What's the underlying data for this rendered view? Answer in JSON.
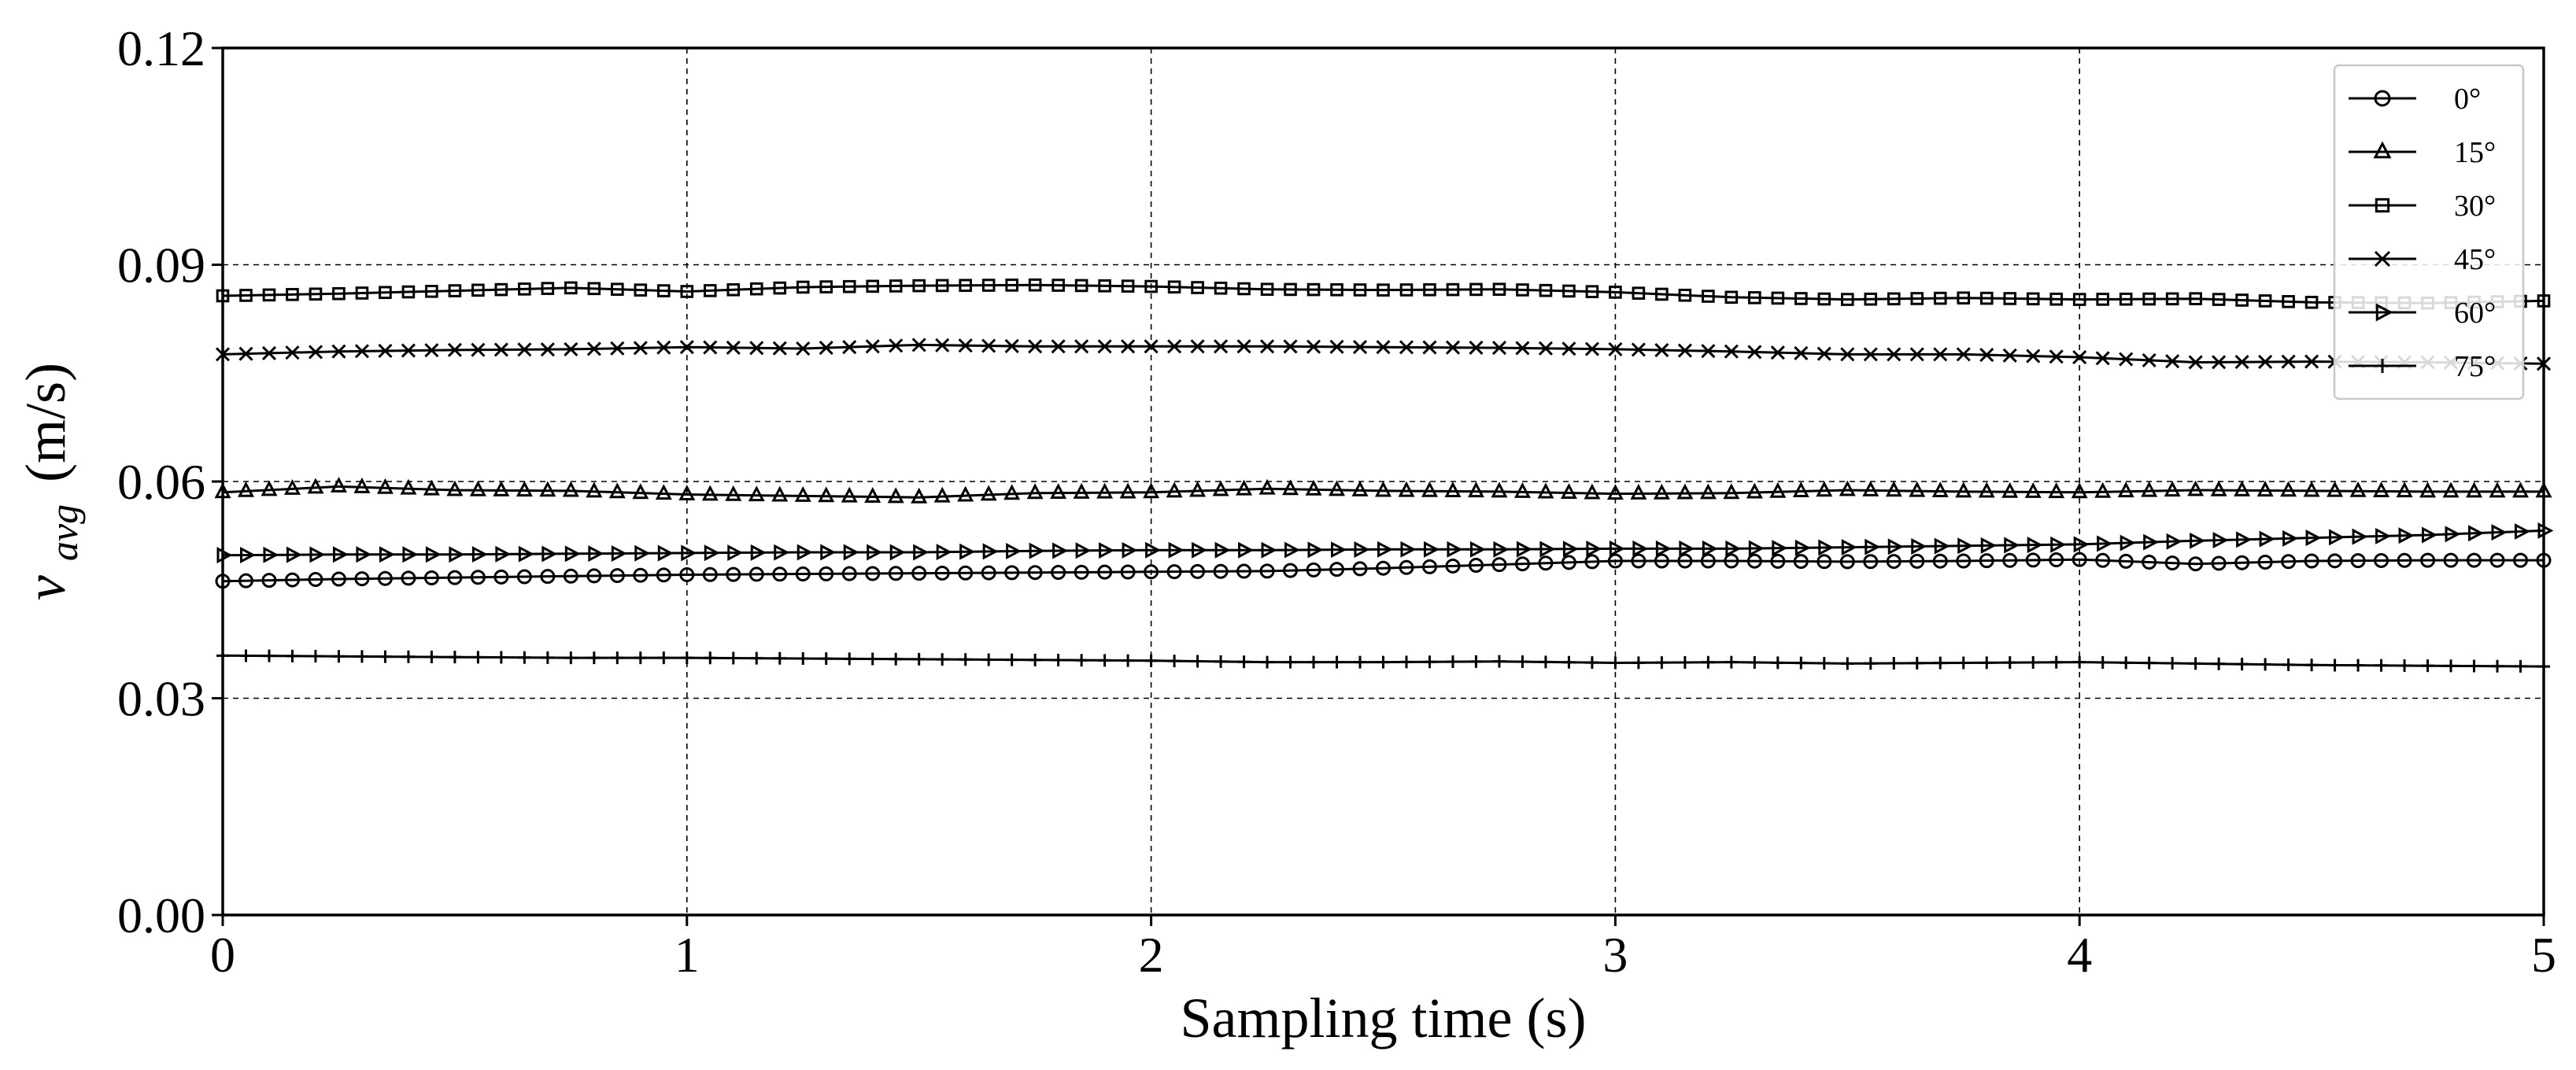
{
  "chart_data": {
    "type": "line",
    "title": "",
    "xlabel": "Sampling time (s)",
    "ylabel_main": "v",
    "ylabel_sub": "avg",
    "ylabel_unit": "(m/s)",
    "xlim": [
      0,
      5
    ],
    "ylim": [
      0,
      0.12
    ],
    "xticks": [
      0,
      1,
      2,
      3,
      4,
      5
    ],
    "xtick_labels": [
      "0",
      "1",
      "2",
      "3",
      "4",
      "5"
    ],
    "yticks": [
      0,
      0.03,
      0.06,
      0.09,
      0.12
    ],
    "ytick_labels": [
      "0.00",
      "0.03",
      "0.06",
      "0.09",
      "0.12"
    ],
    "grid": true,
    "legend_position": "top-right",
    "line_color": "#000000",
    "x": [
      0,
      0.25,
      0.5,
      0.75,
      1,
      1.25,
      1.5,
      1.75,
      2,
      2.25,
      2.5,
      2.75,
      3,
      3.25,
      3.5,
      3.75,
      4,
      4.25,
      4.5,
      4.75,
      5
    ],
    "series": [
      {
        "name": "0°",
        "marker": "circle",
        "values": [
          0.0462,
          0.0465,
          0.0467,
          0.0469,
          0.0471,
          0.0472,
          0.0473,
          0.0474,
          0.0475,
          0.0476,
          0.048,
          0.0485,
          0.049,
          0.049,
          0.0489,
          0.049,
          0.0492,
          0.0486,
          0.049,
          0.0491,
          0.0491
        ]
      },
      {
        "name": "15°",
        "marker": "triangle",
        "values": [
          0.0585,
          0.0593,
          0.0588,
          0.0587,
          0.0582,
          0.058,
          0.0578,
          0.0584,
          0.0585,
          0.059,
          0.0587,
          0.0586,
          0.0583,
          0.0584,
          0.0588,
          0.0586,
          0.0585,
          0.0588,
          0.0587,
          0.0586,
          0.0586
        ]
      },
      {
        "name": "30°",
        "marker": "square",
        "values": [
          0.0857,
          0.086,
          0.0864,
          0.0868,
          0.0863,
          0.0869,
          0.0871,
          0.0872,
          0.087,
          0.0866,
          0.0865,
          0.0866,
          0.0862,
          0.0855,
          0.0852,
          0.0854,
          0.0852,
          0.0853,
          0.0848,
          0.0847,
          0.085
        ]
      },
      {
        "name": "45°",
        "marker": "x",
        "values": [
          0.0776,
          0.078,
          0.0782,
          0.0783,
          0.0786,
          0.0784,
          0.0789,
          0.0787,
          0.0787,
          0.0787,
          0.0786,
          0.0785,
          0.0783,
          0.078,
          0.0776,
          0.0776,
          0.0772,
          0.0765,
          0.0766,
          0.0765,
          0.0763
        ]
      },
      {
        "name": "60°",
        "marker": "triangle-right",
        "values": [
          0.0498,
          0.0499,
          0.0499,
          0.05,
          0.0501,
          0.0502,
          0.0502,
          0.0504,
          0.0505,
          0.0505,
          0.0506,
          0.0506,
          0.0507,
          0.0507,
          0.0509,
          0.0511,
          0.0513,
          0.0518,
          0.0522,
          0.0526,
          0.0532
        ]
      },
      {
        "name": "75°",
        "marker": "plus",
        "values": [
          0.0359,
          0.0358,
          0.0357,
          0.0356,
          0.0356,
          0.0355,
          0.0354,
          0.0353,
          0.0352,
          0.035,
          0.035,
          0.0351,
          0.0349,
          0.035,
          0.0348,
          0.0349,
          0.035,
          0.0348,
          0.0346,
          0.0345,
          0.0344
        ]
      }
    ]
  }
}
